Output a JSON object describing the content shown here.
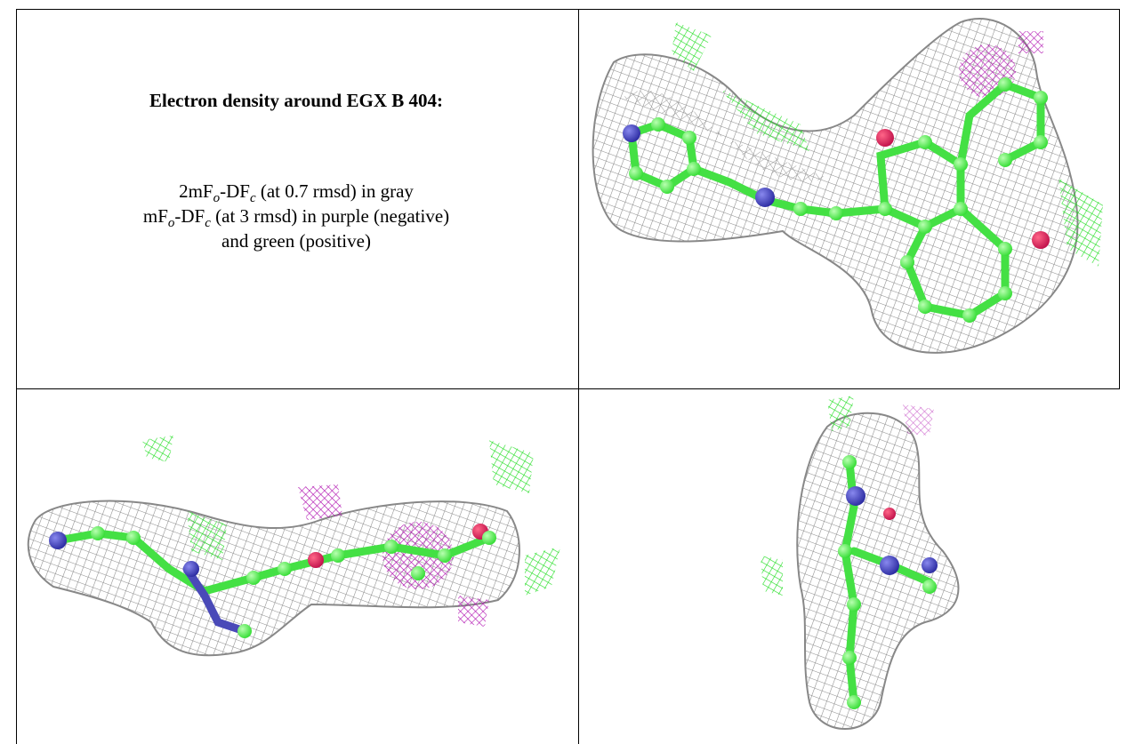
{
  "caption": {
    "title": "Electron density around EGX B 404:",
    "lines": [
      [
        "2mF",
        "o",
        "-DF",
        "c",
        " (at 0.7 rmsd) in gray"
      ],
      [
        "mF",
        "o",
        "-DF",
        "c",
        " (at 3 rmsd) in purple (negative)"
      ],
      [
        "and green (positive)"
      ]
    ]
  }
}
